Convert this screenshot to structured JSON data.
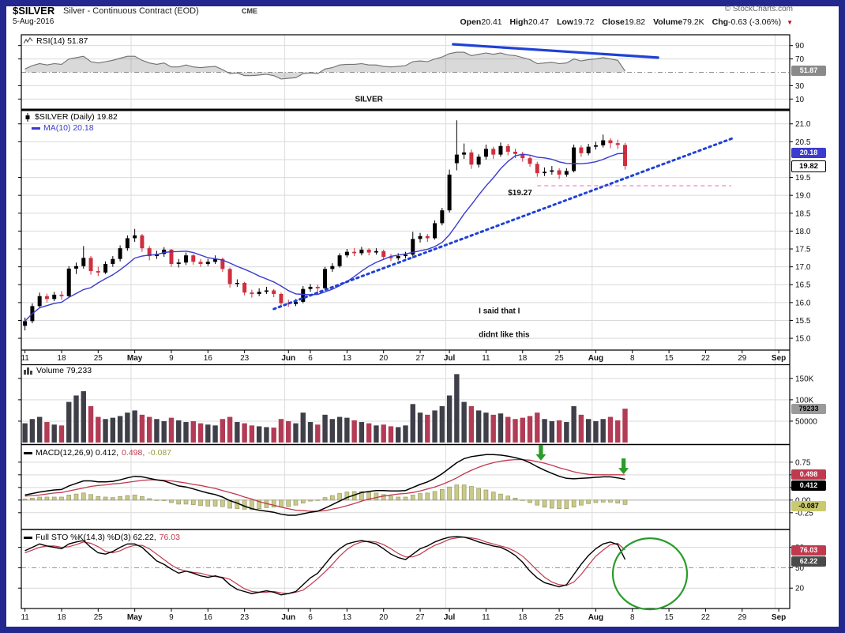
{
  "header": {
    "symbol": "$SILVER",
    "description": "Silver - Continuous Contract (EOD)",
    "exchange": "CME",
    "copyright": "© StockCharts.com",
    "date": "5-Aug-2016",
    "quote": [
      {
        "label": "Open",
        "value": "20.41"
      },
      {
        "label": "High",
        "value": "20.47"
      },
      {
        "label": "Low",
        "value": "19.72"
      },
      {
        "label": "Close",
        "value": "19.82"
      },
      {
        "label": "Volume",
        "value": "79.2K"
      },
      {
        "label": "Chg",
        "value": "-0.63 (-3.06%)"
      }
    ],
    "down_triangle": "▼"
  },
  "legends": {
    "rsi": "RSI(14) 51.87",
    "price": "$SILVER (Daily) 19.82",
    "ma": "MA(10) 20.18",
    "volume": "Volume 79,233",
    "macd_1": "MACD(12,26,9) 0.412,",
    "macd_2": "0.498,",
    "macd_3": "-0.087",
    "sto_1": "Full STO %K(14,3) %D(3) 62.22,",
    "sto_2": "76.03"
  },
  "badges": {
    "rsi": {
      "text": "51.87",
      "bg": "#8a8a8a",
      "fg": "#ffffff"
    },
    "ma": {
      "text": "20.18",
      "bg": "#3b3bd0",
      "fg": "#ffffff"
    },
    "close": {
      "text": "19.82",
      "bg": "#ffffff",
      "fg": "#000000"
    },
    "vol": {
      "text": "79233",
      "bg": "#9a9a9a",
      "fg": "#000000"
    },
    "macd_sig": {
      "text": "0.498",
      "bg": "#c0394f",
      "fg": "#ffffff"
    },
    "macd_line": {
      "text": "0.412",
      "bg": "#000000",
      "fg": "#ffffff"
    },
    "macd_hist": {
      "text": "-0.087",
      "bg": "#c9c96e",
      "fg": "#000000"
    },
    "sto_d": {
      "text": "76.03",
      "bg": "#c0394f",
      "fg": "#ffffff"
    },
    "sto_k": {
      "text": "62.22",
      "bg": "#4a4a4a",
      "fg": "#ffffff"
    }
  },
  "chart_data": {
    "type": "candlestick-multi-panel",
    "title": "$SILVER Silver - Continuous Contract (EOD) CME",
    "date_range": "11-Apr-2016 to 5-Aug-2016 (axis extends to Sep)",
    "x_slots": 105,
    "x_ticks": [
      {
        "t": "11",
        "i": 0
      },
      {
        "t": "18",
        "i": 5
      },
      {
        "t": "25",
        "i": 10
      },
      {
        "t": "May",
        "i": 15,
        "m": true
      },
      {
        "t": "9",
        "i": 20
      },
      {
        "t": "16",
        "i": 25
      },
      {
        "t": "23",
        "i": 30
      },
      {
        "t": "Jun",
        "i": 36,
        "m": true
      },
      {
        "t": "6",
        "i": 39
      },
      {
        "t": "13",
        "i": 44
      },
      {
        "t": "20",
        "i": 49
      },
      {
        "t": "27",
        "i": 54
      },
      {
        "t": "Jul",
        "i": 58,
        "m": true
      },
      {
        "t": "11",
        "i": 63
      },
      {
        "t": "18",
        "i": 68
      },
      {
        "t": "25",
        "i": 73
      },
      {
        "t": "Aug",
        "i": 78,
        "m": true
      },
      {
        "t": "8",
        "i": 83
      },
      {
        "t": "15",
        "i": 88
      },
      {
        "t": "22",
        "i": 93
      },
      {
        "t": "29",
        "i": 98
      },
      {
        "t": "Sep",
        "i": 103,
        "m": true
      }
    ],
    "month_gridlines": [
      15,
      36,
      58,
      78,
      103
    ],
    "panels": {
      "rsi": {
        "ylim": [
          -5,
          105
        ],
        "grid": [
          90,
          70,
          30,
          10
        ],
        "dashdot": [
          50
        ],
        "ticks": [
          {
            "v": 90,
            "t": "90"
          },
          {
            "v": 70,
            "t": "70"
          },
          {
            "v": 30,
            "t": "30"
          },
          {
            "v": 10,
            "t": "10"
          }
        ]
      },
      "price": {
        "ylim": [
          14.67,
          21.37
        ],
        "grid": [
          21,
          20.5,
          20,
          19.5,
          19,
          18.5,
          18,
          17.5,
          17,
          16.5,
          16,
          15.5,
          15
        ],
        "dashdot": [],
        "ticks": [
          {
            "v": 21,
            "t": "21.0"
          },
          {
            "v": 20.5,
            "t": "20.5"
          },
          {
            "v": 19.5,
            "t": "19.5"
          },
          {
            "v": 19,
            "t": "19.0"
          },
          {
            "v": 18.5,
            "t": "18.5"
          },
          {
            "v": 18,
            "t": "18.0"
          },
          {
            "v": 17.5,
            "t": "17.5"
          },
          {
            "v": 17,
            "t": "17.0"
          },
          {
            "v": 16.5,
            "t": "16.5"
          },
          {
            "v": 16,
            "t": "16.0"
          },
          {
            "v": 15.5,
            "t": "15.5"
          },
          {
            "v": 15,
            "t": "15.0"
          }
        ]
      },
      "vol": {
        "ylim": [
          0,
          182
        ],
        "grid": [
          150,
          100,
          50
        ],
        "dashdot": [],
        "ticks": [
          {
            "v": 150,
            "t": "150K"
          },
          {
            "v": 100,
            "t": "100K"
          },
          {
            "v": 50,
            "t": "50000"
          }
        ]
      },
      "macd": {
        "ylim": [
          -0.55,
          1.06
        ],
        "grid": [
          0.75,
          0.5,
          0.25,
          -0.25
        ],
        "dashdot": [],
        "ticks": [
          {
            "v": 0.75,
            "t": "0.75"
          },
          {
            "v": 0.5,
            "t": "0.50"
          },
          {
            "v": 0.25,
            "t": "0.25"
          },
          {
            "v": 0,
            "t": "0.00"
          },
          {
            "v": -0.25,
            "t": "-0.25"
          }
        ]
      },
      "sto": {
        "ylim": [
          -10,
          104
        ],
        "grid": [
          80,
          20
        ],
        "dashdot": [
          50
        ],
        "ticks": [
          {
            "v": 80,
            "t": "80"
          },
          {
            "v": 50,
            "t": "50"
          },
          {
            "v": 20,
            "t": "20"
          }
        ]
      }
    },
    "candles": [
      [
        15.35,
        15.58,
        15.22,
        15.48,
        45
      ],
      [
        15.48,
        15.98,
        15.42,
        15.9,
        55
      ],
      [
        15.9,
        16.28,
        15.85,
        16.18,
        60
      ],
      [
        16.18,
        16.25,
        16.0,
        16.1,
        48
      ],
      [
        16.1,
        16.3,
        16.04,
        16.22,
        42
      ],
      [
        16.22,
        16.32,
        16.08,
        16.18,
        40
      ],
      [
        16.18,
        17.02,
        16.15,
        16.95,
        95
      ],
      [
        16.95,
        17.12,
        16.8,
        17.02,
        110
      ],
      [
        17.02,
        17.58,
        16.95,
        17.25,
        120
      ],
      [
        17.25,
        17.3,
        16.78,
        16.88,
        85
      ],
      [
        16.88,
        17.0,
        16.74,
        16.84,
        60
      ],
      [
        16.84,
        17.15,
        16.8,
        17.08,
        55
      ],
      [
        17.08,
        17.3,
        17.0,
        17.22,
        58
      ],
      [
        17.22,
        17.6,
        17.15,
        17.52,
        62
      ],
      [
        17.52,
        17.88,
        17.45,
        17.8,
        70
      ],
      [
        17.8,
        18.06,
        17.7,
        17.88,
        75
      ],
      [
        17.88,
        17.92,
        17.42,
        17.52,
        65
      ],
      [
        17.52,
        17.58,
        17.18,
        17.3,
        60
      ],
      [
        17.3,
        17.45,
        17.22,
        17.36,
        55
      ],
      [
        17.36,
        17.55,
        17.28,
        17.48,
        50
      ],
      [
        17.48,
        17.5,
        17.0,
        17.08,
        58
      ],
      [
        17.08,
        17.22,
        16.98,
        17.12,
        52
      ],
      [
        17.12,
        17.4,
        17.05,
        17.32,
        48
      ],
      [
        17.32,
        17.36,
        17.06,
        17.14,
        50
      ],
      [
        17.14,
        17.22,
        17.0,
        17.08,
        45
      ],
      [
        17.08,
        17.22,
        17.02,
        17.14,
        42
      ],
      [
        17.14,
        17.32,
        17.08,
        17.22,
        40
      ],
      [
        17.22,
        17.26,
        16.86,
        16.94,
        55
      ],
      [
        16.94,
        16.98,
        16.42,
        16.52,
        60
      ],
      [
        16.52,
        16.65,
        16.44,
        16.55,
        48
      ],
      [
        16.55,
        16.58,
        16.2,
        16.28,
        45
      ],
      [
        16.28,
        16.36,
        16.14,
        16.24,
        40
      ],
      [
        16.24,
        16.4,
        16.18,
        16.3,
        38
      ],
      [
        16.3,
        16.44,
        16.24,
        16.34,
        36
      ],
      [
        16.34,
        16.38,
        16.15,
        16.24,
        35
      ],
      [
        16.24,
        16.28,
        15.9,
        15.98,
        55
      ],
      [
        15.98,
        16.08,
        15.88,
        15.96,
        50
      ],
      [
        15.96,
        16.1,
        15.9,
        16.02,
        45
      ],
      [
        16.02,
        16.46,
        15.98,
        16.38,
        70
      ],
      [
        16.38,
        16.52,
        16.3,
        16.44,
        48
      ],
      [
        16.44,
        16.5,
        16.3,
        16.4,
        42
      ],
      [
        16.4,
        17.0,
        16.36,
        16.94,
        65
      ],
      [
        16.94,
        17.1,
        16.86,
        17.02,
        55
      ],
      [
        17.02,
        17.38,
        16.98,
        17.32,
        60
      ],
      [
        17.32,
        17.5,
        17.26,
        17.42,
        58
      ],
      [
        17.42,
        17.52,
        17.3,
        17.38,
        52
      ],
      [
        17.38,
        17.56,
        17.32,
        17.48,
        48
      ],
      [
        17.48,
        17.52,
        17.32,
        17.4,
        45
      ],
      [
        17.4,
        17.52,
        17.34,
        17.44,
        40
      ],
      [
        17.44,
        17.48,
        17.2,
        17.28,
        42
      ],
      [
        17.28,
        17.36,
        17.16,
        17.24,
        38
      ],
      [
        17.24,
        17.38,
        17.18,
        17.3,
        36
      ],
      [
        17.3,
        17.42,
        17.24,
        17.34,
        40
      ],
      [
        17.34,
        17.98,
        17.24,
        17.78,
        90
      ],
      [
        17.78,
        17.95,
        17.68,
        17.86,
        70
      ],
      [
        17.86,
        17.92,
        17.7,
        17.8,
        65
      ],
      [
        17.8,
        18.3,
        17.76,
        18.22,
        75
      ],
      [
        18.22,
        18.65,
        18.16,
        18.58,
        85
      ],
      [
        18.58,
        19.72,
        18.52,
        19.58,
        110
      ],
      [
        19.9,
        21.1,
        19.7,
        20.14,
        160
      ],
      [
        20.14,
        20.45,
        20.02,
        20.2,
        95
      ],
      [
        20.2,
        20.28,
        19.74,
        19.86,
        85
      ],
      [
        19.86,
        20.15,
        19.78,
        20.08,
        75
      ],
      [
        20.08,
        20.42,
        20.0,
        20.3,
        70
      ],
      [
        20.3,
        20.36,
        20.02,
        20.14,
        65
      ],
      [
        20.14,
        20.48,
        20.08,
        20.38,
        68
      ],
      [
        20.38,
        20.44,
        20.12,
        20.22,
        60
      ],
      [
        20.22,
        20.3,
        20.04,
        20.16,
        55
      ],
      [
        20.16,
        20.22,
        19.94,
        20.04,
        58
      ],
      [
        20.04,
        20.1,
        19.8,
        19.88,
        62
      ],
      [
        19.88,
        19.94,
        19.52,
        19.62,
        70
      ],
      [
        19.62,
        19.78,
        19.54,
        19.66,
        55
      ],
      [
        19.66,
        19.82,
        19.58,
        19.7,
        50
      ],
      [
        19.7,
        19.76,
        19.46,
        19.58,
        52
      ],
      [
        19.58,
        19.76,
        19.52,
        19.68,
        48
      ],
      [
        19.68,
        20.42,
        19.64,
        20.34,
        85
      ],
      [
        20.34,
        20.4,
        20.08,
        20.18,
        65
      ],
      [
        20.18,
        20.44,
        20.12,
        20.36,
        55
      ],
      [
        20.36,
        20.5,
        20.28,
        20.4,
        50
      ],
      [
        20.4,
        20.7,
        20.34,
        20.54,
        55
      ],
      [
        20.54,
        20.6,
        20.32,
        20.46,
        60
      ],
      [
        20.46,
        20.56,
        20.3,
        20.41,
        52
      ],
      [
        20.41,
        20.47,
        19.72,
        19.82,
        79.2
      ]
    ],
    "rsi": [
      55,
      60,
      63,
      61,
      63,
      62,
      70,
      72,
      74,
      66,
      64,
      66,
      68,
      71,
      74,
      74,
      68,
      64,
      62,
      64,
      58,
      58,
      61,
      58,
      57,
      58,
      59,
      54,
      48,
      49,
      45,
      45,
      46,
      47,
      45,
      40,
      41,
      42,
      48,
      49,
      48,
      55,
      57,
      61,
      62,
      62,
      63,
      61,
      61,
      59,
      58,
      59,
      60,
      66,
      67,
      66,
      70,
      73,
      78,
      80,
      80,
      75,
      77,
      79,
      77,
      79,
      76,
      75,
      72,
      69,
      63,
      64,
      65,
      63,
      64,
      70,
      67,
      69,
      70,
      72,
      70,
      68,
      51.87
    ],
    "macd": [
      0.1,
      0.13,
      0.16,
      0.18,
      0.2,
      0.21,
      0.28,
      0.33,
      0.38,
      0.38,
      0.36,
      0.36,
      0.37,
      0.4,
      0.44,
      0.47,
      0.46,
      0.43,
      0.4,
      0.38,
      0.33,
      0.28,
      0.26,
      0.22,
      0.18,
      0.14,
      0.11,
      0.06,
      -0.01,
      -0.06,
      -0.12,
      -0.17,
      -0.2,
      -0.22,
      -0.24,
      -0.28,
      -0.3,
      -0.3,
      -0.27,
      -0.24,
      -0.22,
      -0.16,
      -0.09,
      -0.02,
      0.05,
      0.1,
      0.15,
      0.17,
      0.19,
      0.19,
      0.18,
      0.18,
      0.19,
      0.25,
      0.31,
      0.36,
      0.43,
      0.52,
      0.63,
      0.74,
      0.82,
      0.86,
      0.88,
      0.9,
      0.9,
      0.89,
      0.87,
      0.84,
      0.8,
      0.74,
      0.66,
      0.59,
      0.53,
      0.47,
      0.43,
      0.42,
      0.43,
      0.44,
      0.45,
      0.46,
      0.46,
      0.44,
      0.412
    ],
    "signal": [
      0.08,
      0.09,
      0.1,
      0.12,
      0.14,
      0.15,
      0.18,
      0.21,
      0.24,
      0.27,
      0.29,
      0.3,
      0.32,
      0.33,
      0.35,
      0.37,
      0.39,
      0.4,
      0.4,
      0.39,
      0.38,
      0.36,
      0.34,
      0.31,
      0.29,
      0.26,
      0.23,
      0.19,
      0.15,
      0.11,
      0.06,
      0.02,
      -0.03,
      -0.07,
      -0.1,
      -0.14,
      -0.17,
      -0.2,
      -0.21,
      -0.22,
      -0.22,
      -0.21,
      -0.18,
      -0.15,
      -0.11,
      -0.07,
      -0.02,
      0.02,
      0.05,
      0.08,
      0.1,
      0.12,
      0.13,
      0.15,
      0.18,
      0.22,
      0.26,
      0.31,
      0.37,
      0.44,
      0.52,
      0.59,
      0.65,
      0.7,
      0.74,
      0.77,
      0.79,
      0.8,
      0.8,
      0.79,
      0.76,
      0.73,
      0.69,
      0.64,
      0.6,
      0.56,
      0.53,
      0.51,
      0.5,
      0.5,
      0.5,
      0.5,
      0.499
    ],
    "k": [
      75,
      80,
      85,
      82,
      80,
      78,
      85,
      88,
      90,
      80,
      72,
      70,
      74,
      80,
      85,
      85,
      80,
      70,
      60,
      55,
      48,
      42,
      45,
      42,
      38,
      36,
      38,
      35,
      25,
      18,
      15,
      12,
      14,
      16,
      14,
      10,
      12,
      15,
      25,
      35,
      42,
      55,
      68,
      78,
      85,
      88,
      90,
      88,
      85,
      78,
      70,
      65,
      62,
      70,
      78,
      82,
      88,
      92,
      95,
      96,
      95,
      92,
      88,
      85,
      82,
      80,
      75,
      68,
      58,
      45,
      35,
      28,
      25,
      22,
      25,
      40,
      55,
      68,
      78,
      85,
      88,
      84,
      62.22
    ],
    "d": [
      72,
      76,
      80,
      82,
      82,
      80,
      81,
      84,
      88,
      86,
      81,
      74,
      72,
      75,
      80,
      83,
      83,
      78,
      70,
      62,
      54,
      48,
      45,
      43,
      42,
      39,
      37,
      36,
      33,
      26,
      19,
      15,
      14,
      14,
      15,
      13,
      12,
      14,
      17,
      25,
      34,
      44,
      55,
      67,
      77,
      84,
      88,
      89,
      88,
      84,
      78,
      71,
      66,
      66,
      70,
      77,
      83,
      87,
      92,
      94,
      95,
      94,
      92,
      88,
      85,
      82,
      79,
      74,
      67,
      57,
      46,
      36,
      29,
      25,
      24,
      29,
      40,
      54,
      67,
      76,
      84,
      86,
      76.03
    ],
    "annotations": {
      "rsi_trendline": {
        "x1": 58.5,
        "v1": 92,
        "x2": 86.5,
        "v2": 72
      },
      "silver_label": {
        "text": "SILVER",
        "x": 47,
        "v": 6
      },
      "price_trendline": {
        "x1": 34,
        "v1": 15.82,
        "x2": 97,
        "v2": 20.62
      },
      "support_line": {
        "v": 19.27,
        "x1": 70,
        "x2": 96.5
      },
      "support_label": {
        "text": "$19.27",
        "x": 66,
        "v": 19.0
      },
      "note": {
        "lines": [
          "I said that I",
          "didnt like this"
        ],
        "x": 62,
        "v1": 15.7,
        "v2": 15.04
      },
      "macd_arrows": [
        {
          "x": 70.5,
          "v": 0.78
        },
        {
          "x": 81.8,
          "v": 0.51
        }
      ],
      "sto_circle": {
        "x": 85.4,
        "v": 41,
        "rx": 47,
        "ry": 45
      }
    },
    "colors": {
      "up": "#000000",
      "down": "#cf2f3f",
      "vol_up": "#3f3f49",
      "vol_down": "#b23b55",
      "ma": "#3b3bd0",
      "rsi": "#6f6f6f",
      "rsi_fill": "rgba(120,120,120,0.28)",
      "macd": "#000000",
      "signal": "#c0394f",
      "hist": "#c9c98a",
      "hist_edge": "#8e8e55",
      "hist_label": "#9a9a40",
      "k": "#000000",
      "d": "#c0394f",
      "grid": "#d9d9d9",
      "axis": "#000000",
      "zero": "#b0b0b0",
      "dashdot": "#909090",
      "trend_blue": "#1f41d6",
      "magenta": "#ff00e6",
      "pink": "#ff7bd5",
      "note_blue": "#1f3fd0",
      "green": "#2a9c2a",
      "triangle_red": "#cc0000"
    }
  }
}
